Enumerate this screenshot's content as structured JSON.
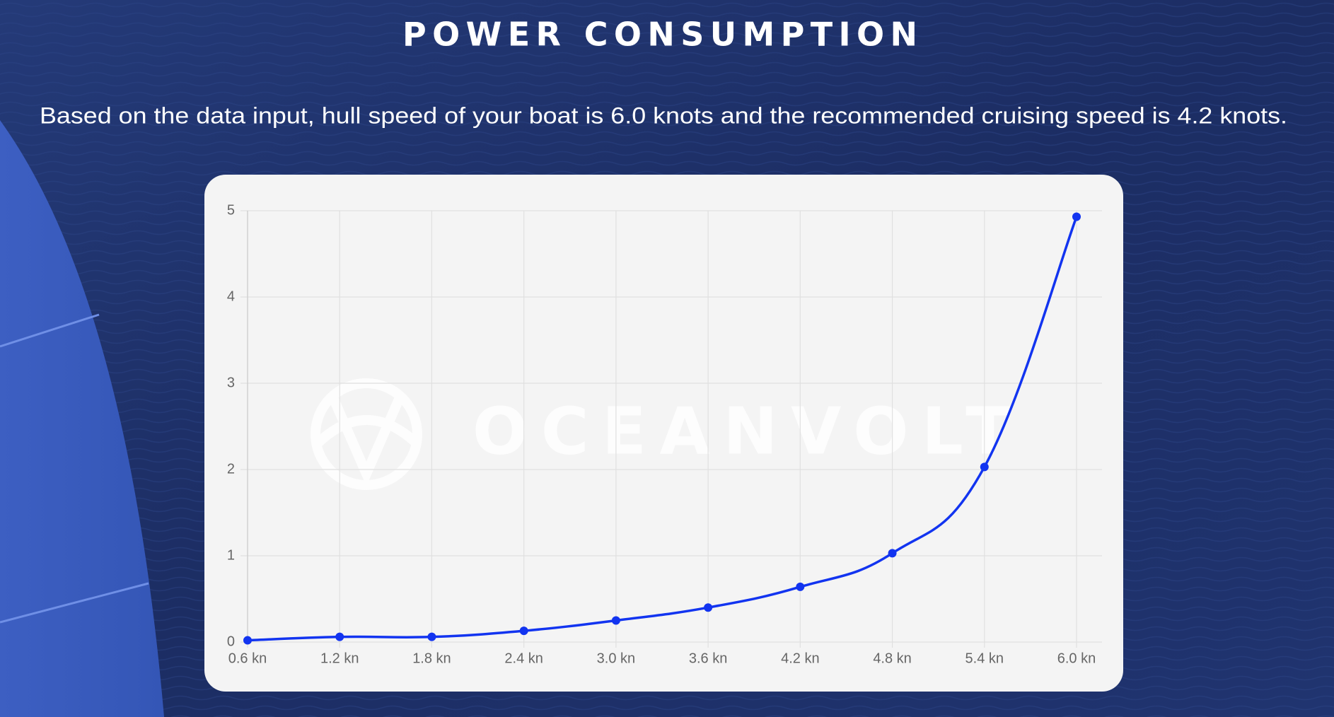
{
  "chart_data": {
    "type": "line",
    "title": "POWER CONSUMPTION",
    "subtitle": "Based on the data input, hull speed of your boat is 6.0 knots and the recommended cruising speed is 4.2 knots.",
    "watermark": "OCEANVOLT",
    "categories": [
      "0.6 kn",
      "1.2 kn",
      "1.8 kn",
      "2.4 kn",
      "3.0 kn",
      "3.6 kn",
      "4.2 kn",
      "4.8 kn",
      "5.4 kn",
      "6.0 kn"
    ],
    "series": [
      {
        "color": "#1234f0",
        "values": [
          0.02,
          0.06,
          0.06,
          0.13,
          0.25,
          0.4,
          0.64,
          1.03,
          2.03,
          4.93
        ]
      }
    ],
    "ylim": [
      0,
      5
    ],
    "yticks": [
      0,
      1,
      2,
      3,
      4,
      5
    ],
    "grid": true
  }
}
